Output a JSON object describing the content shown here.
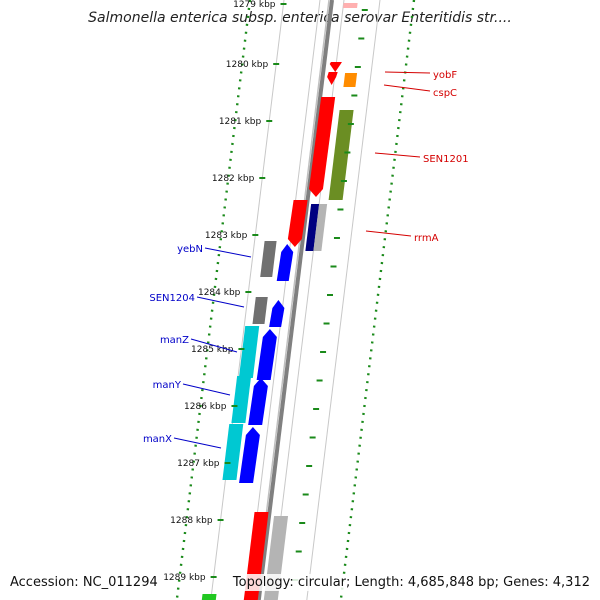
{
  "title": "Salmonella enterica subsp. enterica serovar Enteritidis str....",
  "footer": {
    "accession": "Accession: NC_011294",
    "summary": "Topology: circular; Length: 4,685,848 bp; Genes: 4,312"
  },
  "scale_labels": [
    "1279 kbp",
    "1280 kbp",
    "1281 kbp",
    "1282 kbp",
    "1283 kbp",
    "1284 kbp",
    "1285 kbp",
    "1286 kbp",
    "1287 kbp",
    "1288 kbp",
    "1289 kbp"
  ],
  "genes_right": [
    {
      "name": "yobF",
      "color": "#d40000"
    },
    {
      "name": "cspC",
      "color": "#d40000"
    },
    {
      "name": "SEN1201",
      "color": "#d40000"
    },
    {
      "name": "rrmA",
      "color": "#d40000"
    }
  ],
  "genes_left": [
    {
      "name": "yebN",
      "color": "#0000c8"
    },
    {
      "name": "SEN1204",
      "color": "#0000c8"
    },
    {
      "name": "manZ",
      "color": "#0000c8"
    },
    {
      "name": "manY",
      "color": "#0000c8"
    },
    {
      "name": "manX",
      "color": "#0000c8"
    }
  ],
  "colors": {
    "forward_cds": "#ff0000",
    "reverse_cds": "#0000ff",
    "cog_green": "#6b8e23",
    "cog_cyan": "#00c8d2",
    "cog_gray": "#707070",
    "cog_orange": "#ff8c00",
    "cog_navy": "#000080",
    "backbone": "#808080",
    "dotted_track": "#1a8a1a"
  }
}
